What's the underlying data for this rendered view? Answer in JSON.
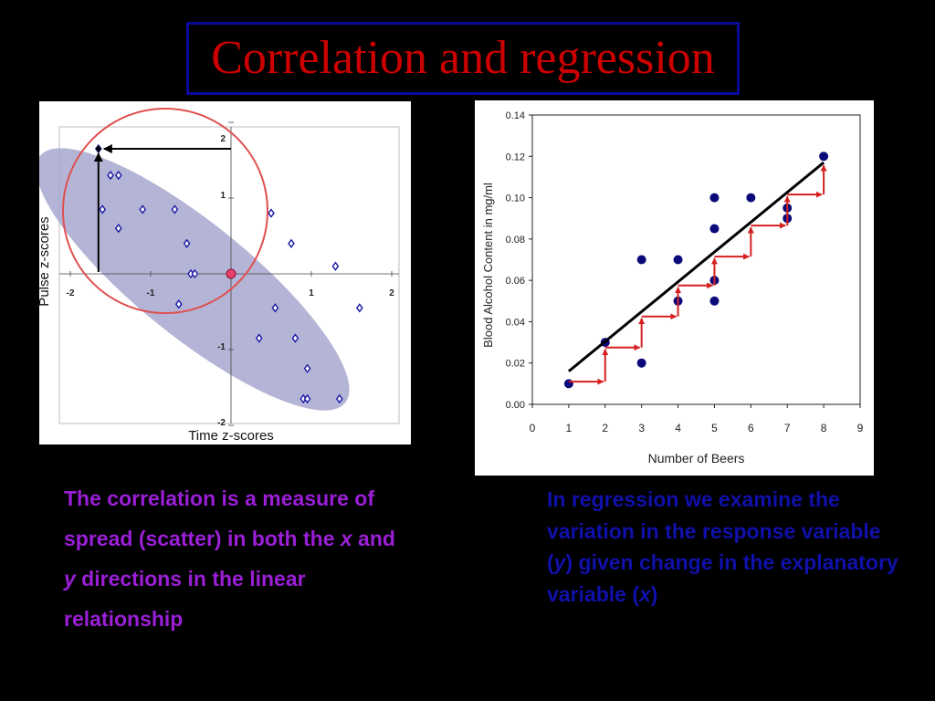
{
  "title": "Correlation and regression",
  "left_caption": {
    "p1": "The correlation is a measure of spread (scatter) in both the ",
    "x": "x",
    "p2": " and ",
    "y": "y",
    "p3": " directions in the linear relationship"
  },
  "right_caption": {
    "p1": "In regression we examine the variation in the response variable (",
    "y": "y",
    "p2": ") given change in the explanatory variable (",
    "x": "x",
    "p3": ")"
  },
  "colors": {
    "title": "#cc0000",
    "left_caption": "#9a1fd6",
    "right_caption": "#1010aa",
    "ellipse_fill": "#a7a7cf",
    "correlation_marker": "#1a1aa6",
    "regression_point": "#0a0a7a",
    "step_arrow": "#d62020",
    "circle": "#e05050"
  },
  "chart_data": [
    {
      "type": "scatter",
      "xlabel": "Time z-scores",
      "ylabel": "Pulse z-scores",
      "xlim": [
        -2,
        2
      ],
      "ylim": [
        -2,
        2
      ],
      "x_ticks": [
        "-2",
        "-1",
        "1",
        "2"
      ],
      "y_ticks": [
        "2",
        "1",
        "-1",
        "-2"
      ],
      "points": [
        [
          -1.65,
          1.65
        ],
        [
          -1.5,
          1.3
        ],
        [
          -1.4,
          1.3
        ],
        [
          -1.6,
          0.85
        ],
        [
          -1.4,
          0.6
        ],
        [
          -1.1,
          0.85
        ],
        [
          -0.7,
          0.85
        ],
        [
          -0.55,
          0.4
        ],
        [
          -0.5,
          0.0
        ],
        [
          -0.45,
          0.0
        ],
        [
          -0.65,
          -0.4
        ],
        [
          0.5,
          0.8
        ],
        [
          0.75,
          0.4
        ],
        [
          0.55,
          -0.45
        ],
        [
          0.35,
          -0.85
        ],
        [
          0.8,
          -0.85
        ],
        [
          0.95,
          -1.25
        ],
        [
          0.9,
          -1.65
        ],
        [
          0.95,
          -1.65
        ],
        [
          1.35,
          -1.65
        ],
        [
          1.3,
          0.1
        ],
        [
          1.6,
          -0.45
        ]
      ],
      "highlight_origin": [
        0,
        0
      ],
      "highlight_point": [
        -1.65,
        1.65
      ]
    },
    {
      "type": "scatter",
      "xlabel": "Number of Beers",
      "ylabel": "Blood Alcohol Content in mg/ml",
      "xlim": [
        0,
        9
      ],
      "ylim": [
        0,
        0.14
      ],
      "x_ticks": [
        "0",
        "1",
        "2",
        "3",
        "4",
        "5",
        "6",
        "7",
        "8",
        "9"
      ],
      "y_ticks": [
        "0.00",
        "0.02",
        "0.04",
        "0.06",
        "0.08",
        "0.10",
        "0.12",
        "0.14"
      ],
      "points": [
        [
          1,
          0.01
        ],
        [
          2,
          0.03
        ],
        [
          3,
          0.02
        ],
        [
          3,
          0.07
        ],
        [
          4,
          0.05
        ],
        [
          4,
          0.07
        ],
        [
          5,
          0.05
        ],
        [
          5,
          0.06
        ],
        [
          5,
          0.085
        ],
        [
          5,
          0.1
        ],
        [
          6,
          0.1
        ],
        [
          7,
          0.09
        ],
        [
          7,
          0.095
        ],
        [
          8,
          0.12
        ]
      ],
      "regression_line": {
        "x": [
          1,
          8
        ],
        "y": [
          0.016,
          0.117
        ]
      },
      "step_arrows": [
        {
          "x0": 1,
          "x1": 2,
          "y0": 0.011,
          "y1": 0.0275
        },
        {
          "x0": 2,
          "x1": 3,
          "y0": 0.0275,
          "y1": 0.0425
        },
        {
          "x0": 3,
          "x1": 4,
          "y0": 0.0425,
          "y1": 0.0575
        },
        {
          "x0": 4,
          "x1": 5,
          "y0": 0.0575,
          "y1": 0.0715
        },
        {
          "x0": 5,
          "x1": 6,
          "y0": 0.0715,
          "y1": 0.0865
        },
        {
          "x0": 6,
          "x1": 7,
          "y0": 0.0865,
          "y1": 0.1015
        },
        {
          "x0": 7,
          "x1": 8,
          "y0": 0.1015,
          "y1": 0.1165
        }
      ]
    }
  ]
}
